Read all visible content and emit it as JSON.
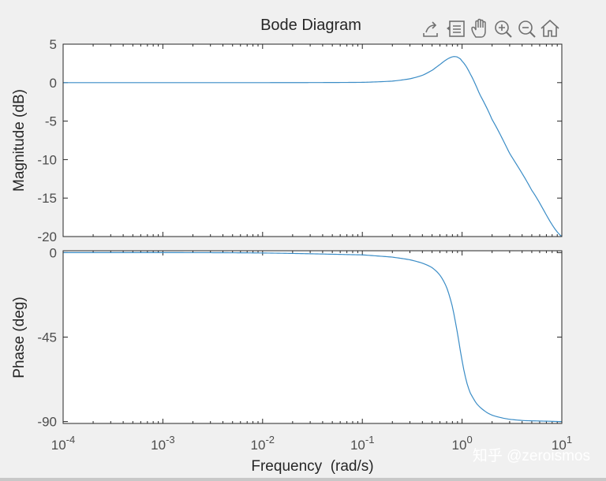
{
  "figure": {
    "title": "Bode Diagram",
    "watermark": "知乎 @zeroismos",
    "toolbar": [
      {
        "name": "export-icon",
        "label": "Export"
      },
      {
        "name": "data-tips-icon",
        "label": "Data tips"
      },
      {
        "name": "pan-hand-icon",
        "label": "Pan"
      },
      {
        "name": "zoom-in-icon",
        "label": "Zoom in"
      },
      {
        "name": "zoom-out-icon",
        "label": "Zoom out"
      },
      {
        "name": "home-icon",
        "label": "Restore view"
      }
    ],
    "colors": {
      "line": "#3a8cc6",
      "axes_bg": "#ffffff",
      "figure_bg": "#f0f0f0",
      "axis": "#262626"
    }
  },
  "chart_data": [
    {
      "type": "line",
      "panel": "magnitude",
      "ylabel": "Magnitude (dB)",
      "xscale": "log",
      "xlim": [
        0.0001,
        10
      ],
      "ylim": [
        -20,
        5
      ],
      "yticks": [
        "5",
        "0",
        "-5",
        "-10",
        "-15",
        "-20"
      ],
      "ytick_values": [
        5,
        0,
        -5,
        -10,
        -15,
        -20
      ],
      "grid": false,
      "x": [
        0.0001,
        0.001,
        0.01,
        0.1,
        0.2,
        0.3,
        0.4,
        0.5,
        0.6,
        0.7,
        0.8,
        0.85,
        0.9,
        1.0,
        1.2,
        1.5,
        2.0,
        3.0,
        5.0,
        10.0
      ],
      "y": [
        0,
        0,
        0,
        0.04,
        0.2,
        0.5,
        0.95,
        1.6,
        2.35,
        3.0,
        3.35,
        3.38,
        3.3,
        2.8,
        1.2,
        -1.5,
        -4.8,
        -9.2,
        -14.0,
        -20.0
      ]
    },
    {
      "type": "line",
      "panel": "phase",
      "ylabel": "Phase (deg)",
      "xlabel": "Frequency  (rad/s)",
      "xscale": "log",
      "xlim": [
        0.0001,
        10
      ],
      "ylim": [
        -91,
        1
      ],
      "yticks": [
        "0",
        "-45",
        "-90"
      ],
      "ytick_values": [
        0,
        -45,
        -90
      ],
      "xticks": [
        {
          "base": "10",
          "exp": "-4"
        },
        {
          "base": "10",
          "exp": "-3"
        },
        {
          "base": "10",
          "exp": "-2"
        },
        {
          "base": "10",
          "exp": "-1"
        },
        {
          "base": "10",
          "exp": "0"
        },
        {
          "base": "10",
          "exp": "1"
        }
      ],
      "xtick_values": [
        0.0001,
        0.001,
        0.01,
        0.1,
        1,
        10
      ],
      "grid": false,
      "x": [
        0.0001,
        0.001,
        0.01,
        0.1,
        0.2,
        0.3,
        0.4,
        0.5,
        0.6,
        0.7,
        0.8,
        0.9,
        1.0,
        1.1,
        1.2,
        1.4,
        1.7,
        2.0,
        2.5,
        3.0,
        4.0,
        5.0,
        7.0,
        10.0
      ],
      "y": [
        0,
        0,
        -0.2,
        -1.2,
        -2.4,
        -3.8,
        -5.6,
        -8.0,
        -12.0,
        -18.5,
        -28.8,
        -43.0,
        -57.5,
        -68.0,
        -74.5,
        -80.5,
        -84.5,
        -86.6,
        -88.0,
        -88.8,
        -89.4,
        -89.6,
        -89.8,
        -90.0
      ]
    }
  ]
}
